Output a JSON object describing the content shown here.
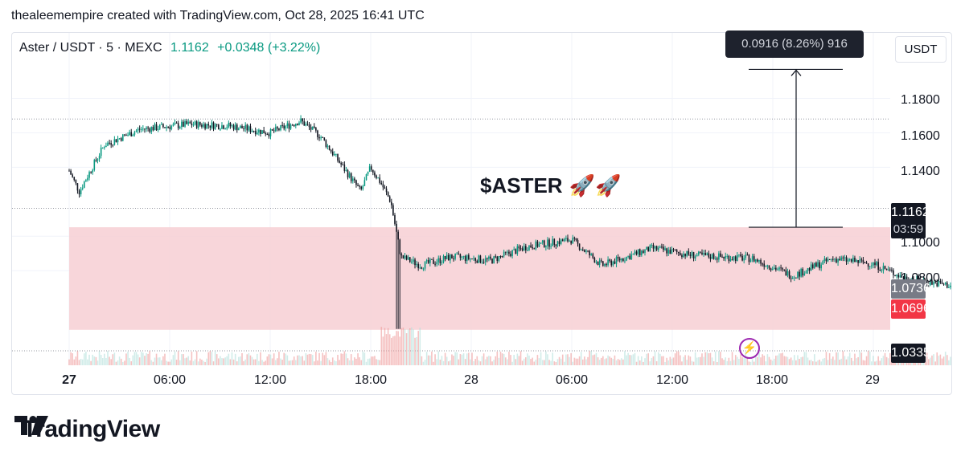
{
  "header": {
    "created_line": "thealeemempire created with TradingView.com, Oct 28, 2025 16:41 UTC"
  },
  "legend": {
    "symbol": "Aster / USDT · 5 · MEXC",
    "last": "1.1162",
    "change": "+0.0348 (+3.22%)"
  },
  "currency": "USDT",
  "measure": {
    "label": "0.0916 (8.26%) 916"
  },
  "annotation": {
    "text": "$ASTER",
    "rockets": "🚀🚀"
  },
  "price_tags": {
    "last": "1.1162",
    "countdown": "03:59",
    "gray": "1.0736",
    "red": "1.0696",
    "low": "1.0335"
  },
  "logo": {
    "text": "TradingView"
  },
  "colors": {
    "up": "#089981",
    "down": "#131722",
    "zone": "#f7cfd3",
    "measure_zone": "#ede0fb",
    "accent_purple": "#9c27b0"
  },
  "chart_data": {
    "type": "candlestick",
    "symbol": "Aster / USDT",
    "interval": "5",
    "exchange": "MEXC",
    "y_ticks": [
      1.18,
      1.16,
      1.14,
      1.1,
      1.08
    ],
    "y_tick_labels": [
      "1.1800",
      "1.1600",
      "1.1400",
      "1.1000",
      "1.0800"
    ],
    "ylim": [
      1.0335,
      1.1998
    ],
    "x_tick_labels": [
      "27",
      "06:00",
      "12:00",
      "18:00",
      "28",
      "06:00",
      "12:00",
      "18:00",
      "29"
    ],
    "x_tick_bold": [
      true,
      false,
      false,
      false,
      false,
      false,
      false,
      false,
      false
    ],
    "path_knots": [
      [
        0,
        1.138
      ],
      [
        0.1,
        1.126
      ],
      [
        0.35,
        1.153
      ],
      [
        0.7,
        1.162
      ],
      [
        1.2,
        1.165
      ],
      [
        1.6,
        1.164
      ],
      [
        2.0,
        1.16
      ],
      [
        2.3,
        1.167
      ],
      [
        2.5,
        1.158
      ],
      [
        2.7,
        1.142
      ],
      [
        2.9,
        1.126
      ],
      [
        3.0,
        1.14
      ],
      [
        3.1,
        1.131
      ],
      [
        3.2,
        1.12
      ],
      [
        3.3,
        1.088
      ],
      [
        3.5,
        1.083
      ],
      [
        3.8,
        1.088
      ],
      [
        4.2,
        1.086
      ],
      [
        4.55,
        1.094
      ],
      [
        5.0,
        1.098
      ],
      [
        5.3,
        1.083
      ],
      [
        5.8,
        1.093
      ],
      [
        6.2,
        1.089
      ],
      [
        6.8,
        1.087
      ],
      [
        7.2,
        1.077
      ],
      [
        7.6,
        1.087
      ],
      [
        8.0,
        1.084
      ],
      [
        8.3,
        1.076
      ],
      [
        8.8,
        1.071
      ],
      [
        9.3,
        1.07
      ],
      [
        9.6,
        1.059
      ],
      [
        10.0,
        1.073
      ],
      [
        10.5,
        1.083
      ],
      [
        11.0,
        1.08
      ],
      [
        11.4,
        1.086
      ],
      [
        11.6,
        1.081
      ],
      [
        11.8,
        1.106
      ],
      [
        12.0,
        1.095
      ],
      [
        12.5,
        1.105
      ],
      [
        12.8,
        1.118
      ]
    ],
    "zones": [
      {
        "kind": "range",
        "from": 1.1052,
        "to": 1.0457,
        "x_start": 0,
        "x_end": "right-edge"
      },
      {
        "kind": "measure",
        "from": 1.1052,
        "to": 1.1968,
        "x_start": 12.8,
        "x_end": 14.8
      }
    ],
    "levels": [
      1.168,
      1.1162,
      1.0335
    ],
    "last_price": 1.1162,
    "measure_change": "0.0916 (8.26%) 916"
  }
}
